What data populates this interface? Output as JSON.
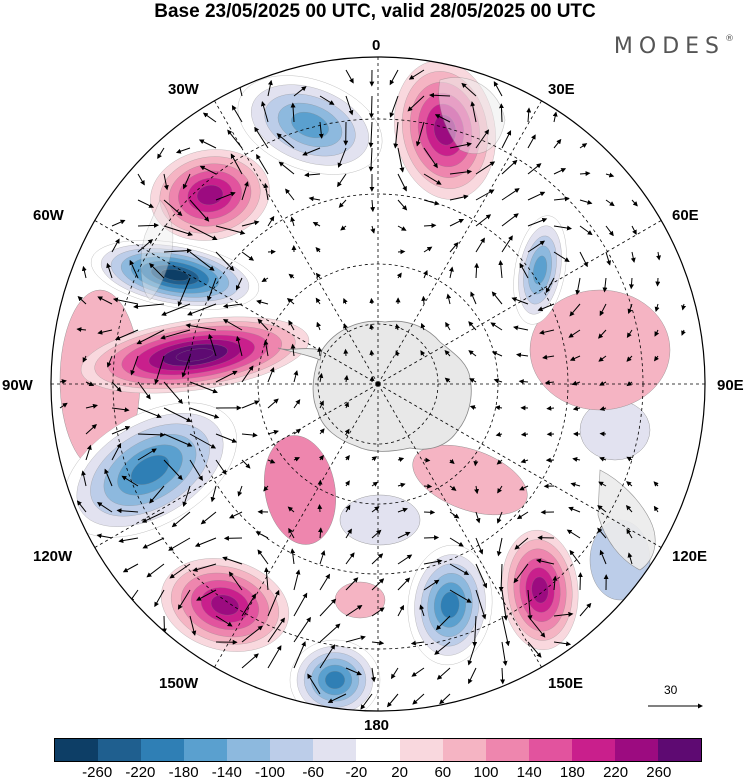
{
  "title": "Base 23/05/2025 00 UTC, valid 28/05/2025 00 UTC",
  "brand": "MODES",
  "brand_mark": "®",
  "map": {
    "projection": "south-polar-stereographic",
    "longitude_labels": {
      "top": "0",
      "top_right": "30E",
      "upper_right": "60E",
      "right": "90E",
      "lower_right": "120E",
      "bottom_right": "150E",
      "bottom": "180",
      "bottom_left": "150W",
      "lower_left": "120W",
      "left": "90W",
      "upper_left": "60W",
      "top_left": "30W"
    },
    "vector_reference": "30",
    "anomaly_centers": [
      {
        "sign": "negative",
        "region": "south Atlantic near 30W",
        "level": -140
      },
      {
        "sign": "positive",
        "region": "south Atlantic near 50W",
        "level": 180
      },
      {
        "sign": "negative",
        "region": "Drake Passage / South America",
        "level": -260
      },
      {
        "sign": "positive",
        "region": "Bellingshausen Sea near 80W",
        "level": 260
      },
      {
        "sign": "negative",
        "region": "south Pacific near 110W",
        "level": -180
      },
      {
        "sign": "positive",
        "region": "south Pacific near 140W",
        "level": 180
      },
      {
        "sign": "negative",
        "region": "Ross Sea near 170W",
        "level": -180
      },
      {
        "sign": "negative",
        "region": "south of New Zealand near 160E",
        "level": -180
      },
      {
        "sign": "positive",
        "region": "near 140E",
        "level": 180
      },
      {
        "sign": "positive",
        "region": "south Atlantic near 10E",
        "level": 180
      },
      {
        "sign": "negative",
        "region": "Indian Ocean near 45E",
        "level": -140
      }
    ]
  },
  "colorbar": {
    "colors": [
      "#0d3e66",
      "#1f5f8f",
      "#2f7fb5",
      "#5aa0cf",
      "#8db9de",
      "#bccde9",
      "#e2e2f0",
      "#ffffff",
      "#f9d8de",
      "#f5b4c3",
      "#ee86ae",
      "#e2539e",
      "#c91f8c",
      "#9c0b80",
      "#5e0a72"
    ],
    "ticks": [
      "-260",
      "-220",
      "-180",
      "-140",
      "-100",
      "-60",
      "-20",
      "20",
      "60",
      "100",
      "140",
      "180",
      "220",
      "260"
    ]
  }
}
